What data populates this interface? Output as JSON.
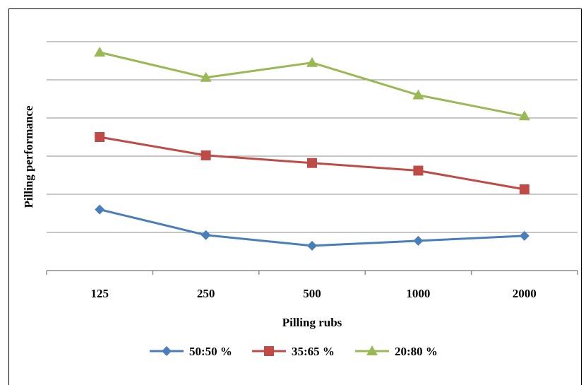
{
  "chart_data": {
    "type": "line",
    "title": "",
    "xlabel": "Pilling rubs",
    "ylabel": "Pilling performance",
    "categories": [
      "125",
      "250",
      "500",
      "1000",
      "2000"
    ],
    "ylim": [
      0,
      6
    ],
    "grid": true,
    "legend_position": "bottom",
    "series": [
      {
        "name": "50:50 %",
        "color": "#4a7ebb",
        "marker": "diamond",
        "values": [
          1.6,
          0.93,
          0.65,
          0.78,
          0.91
        ]
      },
      {
        "name": "35:65 %",
        "color": "#be4b48",
        "marker": "square",
        "values": [
          3.5,
          3.02,
          2.82,
          2.62,
          2.13
        ]
      },
      {
        "name": "20:80 %",
        "color": "#98b954",
        "marker": "triangle",
        "values": [
          5.72,
          5.06,
          5.45,
          4.6,
          4.05
        ]
      }
    ]
  }
}
